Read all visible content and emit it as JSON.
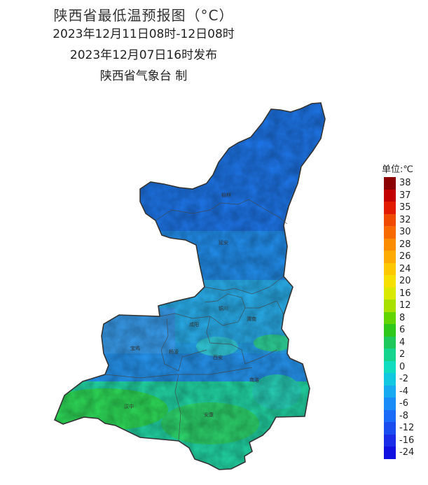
{
  "title": {
    "main": "陕西省最低温预报图（°C）",
    "period": "2023年12月11日08时-12日08时",
    "issued": "2023年12月07日16时发布",
    "issuer": "陕西省气象台 制"
  },
  "legend": {
    "title": "单位:℃",
    "items": [
      {
        "label": "38",
        "color": "#8b0000"
      },
      {
        "label": "37",
        "color": "#c20000"
      },
      {
        "label": "35",
        "color": "#e21a00"
      },
      {
        "label": "32",
        "color": "#f04a00"
      },
      {
        "label": "30",
        "color": "#f86a00"
      },
      {
        "label": "28",
        "color": "#fb8c00"
      },
      {
        "label": "26",
        "color": "#fdab00"
      },
      {
        "label": "24",
        "color": "#fdc800"
      },
      {
        "label": "20",
        "color": "#f6e000"
      },
      {
        "label": "16",
        "color": "#d9ea00"
      },
      {
        "label": "12",
        "color": "#a8e000"
      },
      {
        "label": "8",
        "color": "#62d400"
      },
      {
        "label": "6",
        "color": "#2ec81a"
      },
      {
        "label": "4",
        "color": "#1fc85a"
      },
      {
        "label": "2",
        "color": "#14d48e"
      },
      {
        "label": "0",
        "color": "#10dcc0"
      },
      {
        "label": "-2",
        "color": "#12c8e0"
      },
      {
        "label": "-4",
        "color": "#16aaf0"
      },
      {
        "label": "-6",
        "color": "#1a8cf8"
      },
      {
        "label": "-8",
        "color": "#1a6cf8"
      },
      {
        "label": "-12",
        "color": "#1a4cf0"
      },
      {
        "label": "-16",
        "color": "#1a2ce8"
      },
      {
        "label": "-24",
        "color": "#1010e0"
      }
    ]
  },
  "cities": [
    "榆林",
    "延安",
    "铜川",
    "渭南",
    "咸阳",
    "宝鸡",
    "杨凌",
    "西安",
    "商洛",
    "汉中",
    "安康"
  ],
  "colors": {
    "north": "#1e78ee",
    "central": "#26a6f0",
    "guanzhong": "#32c4ec",
    "south": "#22d890",
    "southwest": "#2fe05a",
    "border": "#333333"
  }
}
